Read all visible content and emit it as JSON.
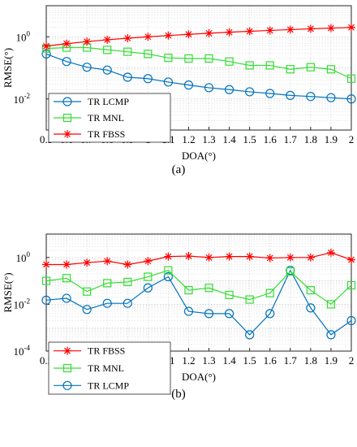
{
  "chart_data": [
    {
      "type": "line",
      "caption": "(a)",
      "xlabel": "DOA(°)",
      "ylabel": "RMSE(°)",
      "yscale": "log",
      "xlim": [
        0.5,
        2
      ],
      "ylim": [
        0.001,
        10
      ],
      "x_tick_labels": [
        "0.5",
        "0.6",
        "0.7",
        "0.8",
        "0.9",
        "1",
        "1.1",
        "1.2",
        "1.3",
        "1.4",
        "1.5",
        "1.6",
        "1.7",
        "1.8",
        "1.9",
        "2"
      ],
      "y_ticks": [
        {
          "mant": "10",
          "exp": "0",
          "value": 1
        },
        {
          "mant": "10",
          "exp": "-2",
          "value": 0.01
        }
      ],
      "grid": true,
      "legend_position": "bottom-left",
      "legend_order": [
        0,
        1,
        2
      ],
      "x": [
        0.5,
        0.6,
        0.7,
        0.8,
        0.9,
        1.0,
        1.1,
        1.2,
        1.3,
        1.4,
        1.5,
        1.6,
        1.7,
        1.8,
        1.9,
        2.0
      ],
      "series": [
        {
          "name": "TR LCMP",
          "color": "#0072BD",
          "marker": "circle",
          "values": [
            0.28,
            0.16,
            0.105,
            0.085,
            0.05,
            0.045,
            0.035,
            0.028,
            0.023,
            0.02,
            0.017,
            0.015,
            0.013,
            0.012,
            0.011,
            0.01
          ]
        },
        {
          "name": "TR MNL",
          "color": "#33DD33",
          "marker": "square",
          "values": [
            0.42,
            0.45,
            0.45,
            0.38,
            0.33,
            0.28,
            0.21,
            0.2,
            0.2,
            0.16,
            0.12,
            0.12,
            0.09,
            0.105,
            0.09,
            0.045
          ]
        },
        {
          "name": "TR FBSS",
          "color": "#FF0000",
          "marker": "star",
          "values": [
            0.5,
            0.6,
            0.7,
            0.8,
            0.9,
            1.0,
            1.1,
            1.2,
            1.3,
            1.4,
            1.5,
            1.6,
            1.7,
            1.8,
            1.9,
            2.0
          ]
        }
      ]
    },
    {
      "type": "line",
      "caption": "(b)",
      "xlabel": "DOA(°)",
      "ylabel": "RMSE(°)",
      "yscale": "log",
      "xlim": [
        0.5,
        2
      ],
      "ylim": [
        0.0001,
        10
      ],
      "x_tick_labels": [
        "0.5",
        "0.6",
        "0.7",
        "0.8",
        "0.9",
        "1",
        "1.1",
        "1.2",
        "1.3",
        "1.4",
        "1.5",
        "1.6",
        "1.7",
        "1.8",
        "1.9",
        "2"
      ],
      "y_ticks": [
        {
          "mant": "10",
          "exp": "0",
          "value": 1
        },
        {
          "mant": "10",
          "exp": "-2",
          "value": 0.01
        },
        {
          "mant": "10",
          "exp": "-4",
          "value": 0.0001
        }
      ],
      "grid": true,
      "legend_position": "bottom-left",
      "legend_order": [
        2,
        1,
        0
      ],
      "x": [
        0.5,
        0.6,
        0.7,
        0.8,
        0.9,
        1.0,
        1.1,
        1.2,
        1.3,
        1.4,
        1.5,
        1.6,
        1.7,
        1.8,
        1.9,
        2.0
      ],
      "series": [
        {
          "name": "TR LCMP",
          "color": "#0072BD",
          "marker": "circle",
          "values": [
            0.015,
            0.018,
            0.006,
            0.011,
            0.011,
            0.05,
            0.15,
            0.005,
            0.004,
            0.004,
            0.0005,
            0.004,
            0.28,
            0.007,
            0.0005,
            0.002
          ]
        },
        {
          "name": "TR MNL",
          "color": "#33DD33",
          "marker": "square",
          "values": [
            0.1,
            0.13,
            0.035,
            0.08,
            0.09,
            0.15,
            0.28,
            0.04,
            0.05,
            0.025,
            0.016,
            0.03,
            0.25,
            0.04,
            0.01,
            0.065
          ]
        },
        {
          "name": "TR FBSS",
          "color": "#FF0000",
          "marker": "star",
          "values": [
            0.5,
            0.5,
            0.6,
            0.7,
            0.5,
            0.7,
            1.1,
            1.15,
            1.0,
            1.1,
            1.1,
            0.95,
            1.0,
            1.0,
            1.6,
            0.8
          ]
        }
      ]
    }
  ]
}
